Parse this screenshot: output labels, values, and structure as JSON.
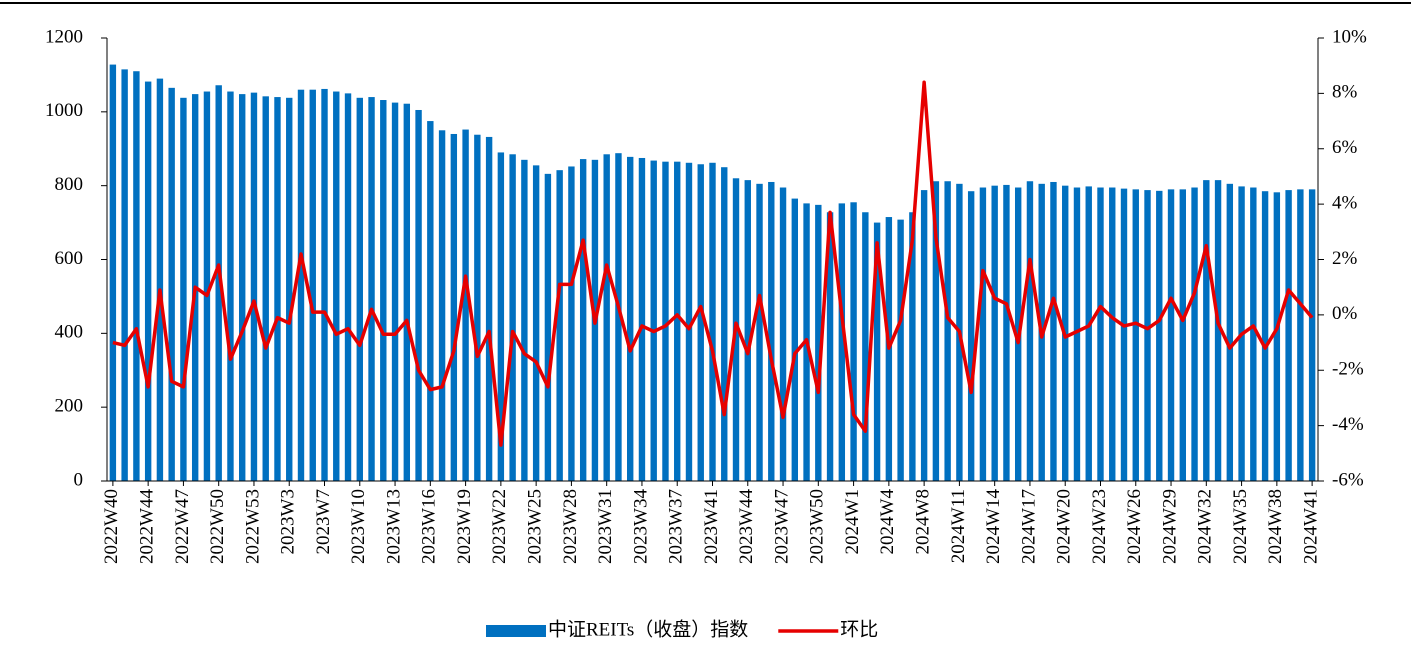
{
  "chart_data": {
    "type": "bar-line",
    "categories": [
      "2022W40",
      null,
      null,
      "2022W44",
      null,
      null,
      "2022W47",
      null,
      null,
      "2022W50",
      null,
      null,
      "2022W53",
      null,
      null,
      "2023W3",
      null,
      null,
      "2023W7",
      null,
      null,
      "2023W10",
      null,
      null,
      "2023W13",
      null,
      null,
      "2023W16",
      null,
      null,
      "2023W19",
      null,
      null,
      "2023W22",
      null,
      null,
      "2023W25",
      null,
      null,
      "2023W28",
      null,
      null,
      "2023W31",
      null,
      null,
      "2023W34",
      null,
      null,
      "2023W37",
      null,
      null,
      "2023W41",
      null,
      null,
      "2023W44",
      null,
      null,
      "2023W47",
      null,
      null,
      "2023W50",
      null,
      null,
      "2024W1",
      null,
      null,
      "2024W4",
      null,
      null,
      "2024W8",
      null,
      null,
      "2024W11",
      null,
      null,
      "2024W14",
      null,
      null,
      "2024W17",
      null,
      null,
      "2024W20",
      null,
      null,
      "2024W23",
      null,
      null,
      "2024W26",
      null,
      null,
      "2024W29",
      null,
      null,
      "2024W32",
      null,
      null,
      "2024W35",
      null,
      null,
      "2024W38",
      null,
      null,
      "2024W41"
    ],
    "series": [
      {
        "name": "中证REITs（收盘）指数",
        "color": "#0070c0",
        "values": [
          1128,
          1115,
          1110,
          1082,
          1090,
          1065,
          1038,
          1048,
          1055,
          1072,
          1055,
          1048,
          1052,
          1042,
          1040,
          1038,
          1060,
          1060,
          1062,
          1055,
          1050,
          1038,
          1040,
          1032,
          1025,
          1022,
          1005,
          975,
          950,
          940,
          952,
          938,
          932,
          890,
          885,
          870,
          855,
          832,
          842,
          852,
          872,
          870,
          885,
          888,
          878,
          875,
          868,
          865,
          865,
          862,
          858,
          862,
          850,
          820,
          815,
          805,
          810,
          795,
          765,
          752,
          748,
          728,
          752,
          755,
          728,
          700,
          715,
          708,
          728,
          788,
          812,
          812,
          805,
          785,
          795,
          800,
          802,
          795,
          812,
          805,
          810,
          800,
          795,
          798,
          795,
          795,
          792,
          790,
          788,
          786,
          790,
          790,
          795,
          815,
          815,
          805,
          798,
          795,
          785,
          782,
          788,
          790,
          790
        ]
      },
      {
        "name": "环比",
        "color": "#e60000",
        "axis": "y2",
        "values": [
          -1.0,
          -1.1,
          -0.5,
          -2.6,
          0.9,
          -2.4,
          -2.6,
          1.0,
          0.7,
          1.8,
          -1.6,
          -0.6,
          0.5,
          -1.2,
          -0.1,
          -0.3,
          2.2,
          0.1,
          0.1,
          -0.7,
          -0.5,
          -1.1,
          0.2,
          -0.7,
          -0.7,
          -0.2,
          -2.0,
          -2.7,
          -2.6,
          -1.3,
          1.4,
          -1.5,
          -0.6,
          -4.7,
          -0.6,
          -1.4,
          -1.7,
          -2.6,
          1.1,
          1.1,
          2.7,
          -0.3,
          1.8,
          0.3,
          -1.3,
          -0.4,
          -0.6,
          -0.4,
          0.0,
          -0.5,
          0.3,
          -1.3,
          -3.6,
          -0.3,
          -1.4,
          0.7,
          -1.6,
          -3.7,
          -1.4,
          -0.9,
          -2.8,
          3.7,
          0.0,
          -3.6,
          -4.2,
          2.6,
          -1.2,
          -0.2,
          2.7,
          8.4,
          2.8,
          -0.1,
          -0.6,
          -2.8,
          1.6,
          0.6,
          0.4,
          -1.0,
          2.0,
          -0.8,
          0.6,
          -0.8,
          -0.6,
          -0.4,
          0.3,
          -0.1,
          -0.4,
          -0.3,
          -0.5,
          -0.2,
          0.6,
          -0.2,
          0.8,
          2.5,
          -0.3,
          -1.2,
          -0.7,
          -0.4,
          -1.2,
          -0.5,
          0.9,
          0.4,
          -0.1
        ]
      }
    ],
    "ylim": [
      0,
      1200
    ],
    "yticks": [
      0,
      200,
      400,
      600,
      800,
      1000,
      1200
    ],
    "y2lim": [
      -6,
      10
    ],
    "y2ticks": [
      {
        "value": -6,
        "label": "-6%"
      },
      {
        "value": -4,
        "label": "-4%"
      },
      {
        "value": -2,
        "label": "-2%"
      },
      {
        "value": 0,
        "label": "0%"
      },
      {
        "value": 2,
        "label": "2%"
      },
      {
        "value": 4,
        "label": "4%"
      },
      {
        "value": 6,
        "label": "6%"
      },
      {
        "value": 8,
        "label": "8%"
      },
      {
        "value": 10,
        "label": "10%"
      }
    ],
    "legend": "bottom"
  }
}
